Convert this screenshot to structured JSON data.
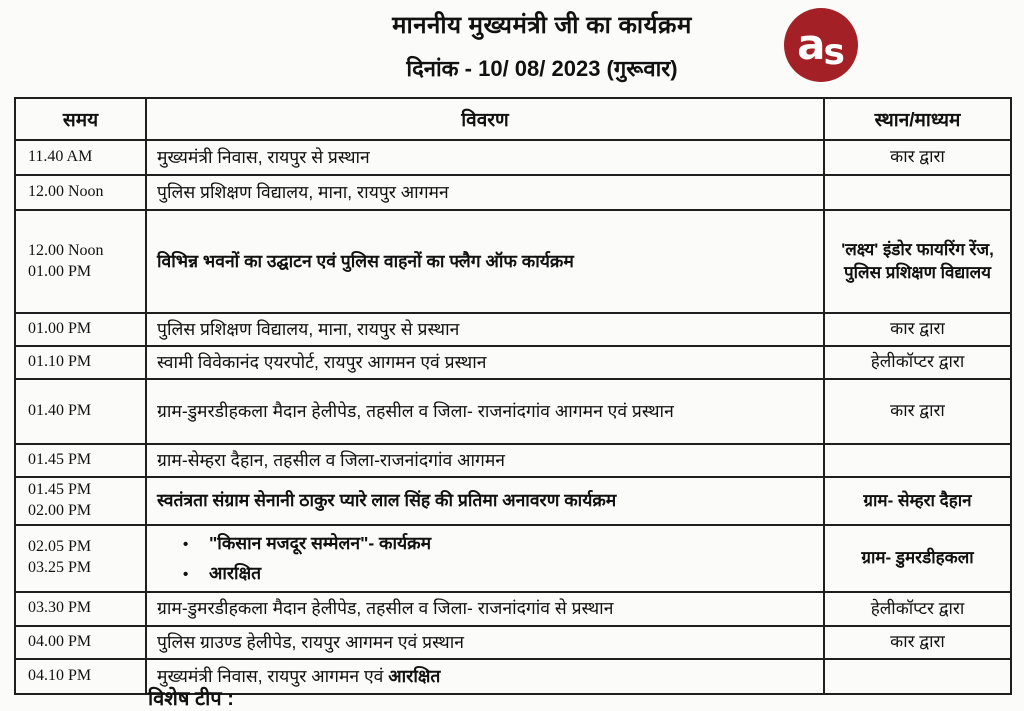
{
  "header": {
    "title": "माननीय मुख्यमंत्री जी का कार्यक्रम",
    "date_line": "दिनांक - 10/ 08/ 2023  (गुरूवार)",
    "logo": {
      "text_a": "a",
      "text_s": "s",
      "color": "#a32126"
    }
  },
  "table": {
    "headers": [
      "समय",
      "विवरण",
      "स्थान/माध्यम"
    ],
    "rows": [
      {
        "times": [
          "11.40 AM"
        ],
        "details": "मुख्यमंत्री निवास, रायपुर से प्रस्थान",
        "location": "कार द्वारा"
      },
      {
        "times": [
          "12.00 Noon"
        ],
        "details": "पुलिस प्रशिक्षण विद्यालय, माना, रायपुर आगमन",
        "location": ""
      },
      {
        "times": [
          "12.00 Noon",
          "01.00 PM"
        ],
        "details": "विभिन्न भवनों का उद्घाटन एवं पुलिस वाहनों का फ्लैग ऑफ कार्यक्रम",
        "details_bold": true,
        "location": "'लक्ष्य' इंडोर फायरिंग रेंज, पुलिस प्रशिक्षण विद्यालय",
        "location_bold": true
      },
      {
        "times": [
          "01.00 PM"
        ],
        "details": "पुलिस प्रशिक्षण विद्यालय, माना, रायपुर से प्रस्थान",
        "location": "कार द्वारा"
      },
      {
        "times": [
          "01.10 PM"
        ],
        "details": "स्वामी विवेकानंद एयरपोर्ट, रायपुर आगमन एवं प्रस्थान",
        "location": "हेलीकॉप्टर द्वारा"
      },
      {
        "times": [
          "01.40 PM"
        ],
        "details": "ग्राम-डुमरडीहकला मैदान हेलीपेड, तहसील व जिला- राजनांदगांव आगमन एवं प्रस्थान",
        "location": "कार द्वारा"
      },
      {
        "times": [
          "01.45 PM"
        ],
        "details": "ग्राम-सेम्हरा दैहान, तहसील व जिला-राजनांदगांव आगमन",
        "location": ""
      },
      {
        "times": [
          "01.45 PM",
          "02.00 PM"
        ],
        "details": "स्वतंत्रता संग्राम सेनानी ठाकुर प्यारे लाल सिंह की प्रतिमा अनावरण कार्यक्रम",
        "details_bold": true,
        "location": "ग्राम- सेम्हरा दैहान",
        "location_bold": true
      },
      {
        "times": [
          "02.05 PM",
          "03.25 PM"
        ],
        "bullets": [
          "\"किसान मजदूर सम्मेलन\"- कार्यक्रम",
          "आरक्षित"
        ],
        "details_bold": true,
        "location": "ग्राम- डुमरडीहकला",
        "location_bold": true
      },
      {
        "times": [
          "03.30 PM"
        ],
        "details": "ग्राम-डुमरडीहकला मैदान हेलीपेड, तहसील व जिला- राजनांदगांव से प्रस्थान",
        "location": "हेलीकॉप्टर द्वारा"
      },
      {
        "times": [
          "04.00 PM"
        ],
        "details": "पुलिस ग्राउण्ड हेलीपेड, रायपुर आगमन एवं प्रस्थान",
        "location": "कार द्वारा"
      },
      {
        "times": [
          "04.10 PM"
        ],
        "details": "मुख्यमंत्री निवास, रायपुर आगमन एवं ",
        "bold_suffix": "आरक्षित",
        "location": ""
      }
    ]
  },
  "footer": {
    "note_fragment": "विशेष टीप :"
  }
}
